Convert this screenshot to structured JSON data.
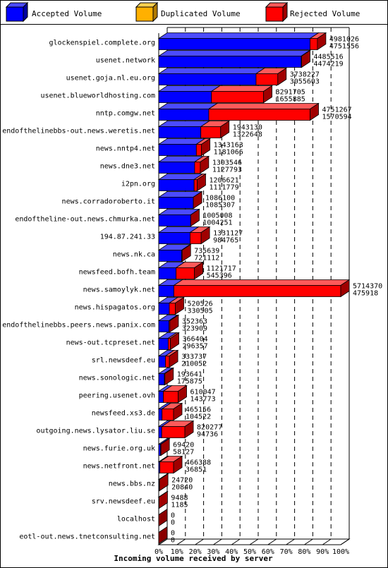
{
  "chart_data": {
    "type": "bar",
    "orientation": "horizontal",
    "stacked": true,
    "style": "3d",
    "xlabel": "Incoming volume received by server",
    "xlim": [
      0,
      100
    ],
    "x_ticks": [
      "0%",
      "10%",
      "20%",
      "30%",
      "40%",
      "50%",
      "60%",
      "70%",
      "80%",
      "90%",
      "100%"
    ],
    "legend_position": "top",
    "legend": [
      {
        "name": "Accepted Volume",
        "color": "#0000ff"
      },
      {
        "name": "Duplicated Volume",
        "color": "#ffb000"
      },
      {
        "name": "Rejected Volume",
        "color": "#ff0000"
      }
    ],
    "rows": [
      {
        "server": "glockenspiel.complete.org",
        "accepted": 4751556,
        "rejected": 229470,
        "total": 4981026
      },
      {
        "server": "usenet.network",
        "accepted": 4474219,
        "rejected": 11297,
        "total": 4485516
      },
      {
        "server": "usenet.goja.nl.eu.org",
        "accepted": 3055603,
        "rejected": 682624,
        "total": 3738227
      },
      {
        "server": "usenet.blueworldhosting.com",
        "accepted": 1655885,
        "rejected": 1635820,
        "total": 3291705
      },
      {
        "server": "nntp.comgw.net",
        "accepted": 1570594,
        "rejected": 3180673,
        "total": 4751267
      },
      {
        "server": "endofthelinebbs-out.news.weretis.net",
        "accepted": 1322648,
        "rejected": 620482,
        "total": 1943130
      },
      {
        "server": "news.nntp4.net",
        "accepted": 1181066,
        "rejected": 162097,
        "total": 1343163
      },
      {
        "server": "news.dne3.net",
        "accepted": 1127793,
        "rejected": 175753,
        "total": 1303546
      },
      {
        "server": "i2pn.org",
        "accepted": 1111779,
        "rejected": 94842,
        "total": 1206621
      },
      {
        "server": "news.corradoroberto.it",
        "accepted": 1085307,
        "rejected": 793,
        "total": 1086100
      },
      {
        "server": "endoftheline-out.news.chmurka.net",
        "accepted": 1004251,
        "rejected": 757,
        "total": 1005008
      },
      {
        "server": "194.87.241.33",
        "accepted": 984765,
        "rejected": 346362,
        "total": 1331127
      },
      {
        "server": "news.nk.ca",
        "accepted": 721112,
        "rejected": 14527,
        "total": 735639
      },
      {
        "server": "newsfeed.bofh.team",
        "accepted": 545396,
        "rejected": 576321,
        "total": 1121717
      },
      {
        "server": "news.samoylyk.net",
        "accepted": 475918,
        "rejected": 5238452,
        "total": 5714370
      },
      {
        "server": "news.hispagatos.org",
        "accepted": 330505,
        "rejected": 190021,
        "total": 520526
      },
      {
        "server": "endofthelinebbs.peers.news.panix.com",
        "accepted": 323909,
        "rejected": 28454,
        "total": 352363
      },
      {
        "server": "news-out.tcpreset.net",
        "accepted": 296357,
        "rejected": 70047,
        "total": 366404
      },
      {
        "server": "srl.newsdeef.eu",
        "accepted": 210052,
        "rejected": 123685,
        "total": 333737
      },
      {
        "server": "news.sonologic.net",
        "accepted": 175875,
        "rejected": 17766,
        "total": 193641
      },
      {
        "server": "peering.usenet.ovh",
        "accepted": 143773,
        "rejected": 466274,
        "total": 610047
      },
      {
        "server": "newsfeed.xs3.de",
        "accepted": 104522,
        "rejected": 360634,
        "total": 465156
      },
      {
        "server": "outgoing.news.lysator.liu.se",
        "accepted": 94736,
        "rejected": 725541,
        "total": 820277
      },
      {
        "server": "news.furie.org.uk",
        "accepted": 58127,
        "rejected": 11293,
        "total": 69420
      },
      {
        "server": "news.netfront.net",
        "accepted": 36851,
        "rejected": 429537,
        "total": 466388
      },
      {
        "server": "news.bbs.nz",
        "accepted": 20840,
        "rejected": 3880,
        "total": 24720
      },
      {
        "server": "srv.newsdeef.eu",
        "accepted": 1185,
        "rejected": 8303,
        "total": 9488
      },
      {
        "server": "localhost",
        "accepted": 0,
        "rejected": 0,
        "total": 0
      },
      {
        "server": "eotl-out.news.tnetconsulting.net",
        "accepted": 0,
        "rejected": 0,
        "total": 0
      }
    ]
  },
  "colors": {
    "accepted": "#0000ff",
    "duplicated": "#ffb000",
    "rejected": "#ff0000",
    "accepted_top": "#4c4cff",
    "accepted_side": "#0000a0",
    "rejected_top": "#ff5a5a",
    "rejected_side": "#a00000",
    "zero_side": "#8a0000"
  }
}
